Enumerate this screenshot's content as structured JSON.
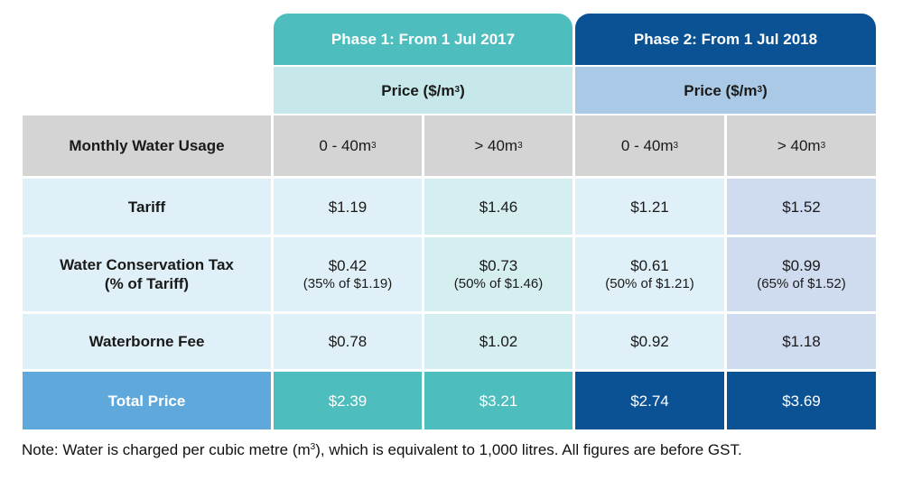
{
  "phases": [
    {
      "title": "Phase 1: From 1 Jul 2017",
      "price_label": "Price ($/m",
      "price_sup": "3",
      "price_close": ")"
    },
    {
      "title": "Phase 2: From 1 Jul 2018",
      "price_label": "Price ($/m",
      "price_sup": "3",
      "price_close": ")"
    }
  ],
  "usage_header": {
    "label": "Monthly Water Usage",
    "tiers": [
      {
        "text": "0 - 40m",
        "sup": "3"
      },
      {
        "text": "> 40m",
        "sup": "3"
      },
      {
        "text": "0 - 40m",
        "sup": "3"
      },
      {
        "text": "> 40m",
        "sup": "3"
      }
    ]
  },
  "rows": [
    {
      "label": "Tariff",
      "values": [
        "$1.19",
        "$1.46",
        "$1.21",
        "$1.52"
      ]
    },
    {
      "label": "Water Conservation Tax",
      "sublabel": "(% of Tariff)",
      "values": [
        "$0.42",
        "$0.73",
        "$0.61",
        "$0.99"
      ],
      "notes": [
        "(35% of $1.19)",
        "(50% of $1.46)",
        "(50% of $1.21)",
        "(65% of $1.52)"
      ]
    },
    {
      "label": "Waterborne Fee",
      "values": [
        "$0.78",
        "$1.02",
        "$0.92",
        "$1.18"
      ]
    }
  ],
  "total": {
    "label": "Total Price",
    "values": [
      "$2.39",
      "$3.21",
      "$2.74",
      "$3.69"
    ]
  },
  "note": {
    "before": "Note: Water is charged per cubic metre (m",
    "sup": "3",
    "after": "), which is equivalent to 1,000 litres. All figures are before GST."
  },
  "colors": {
    "phase1_header": "#4dbdbd",
    "phase2_header": "#0b5294",
    "phase1_price": "#c6e8ea",
    "phase2_price": "#a9c9e6",
    "usage_row": "#d4d4d4",
    "row_light": "#e0f0f8",
    "row_tint1": "#d5eef0",
    "row_tint2": "#cfdcf0",
    "total_label": "#5fa8dc",
    "total_p1": "#4dbdbd",
    "total_p2": "#0b5294"
  }
}
